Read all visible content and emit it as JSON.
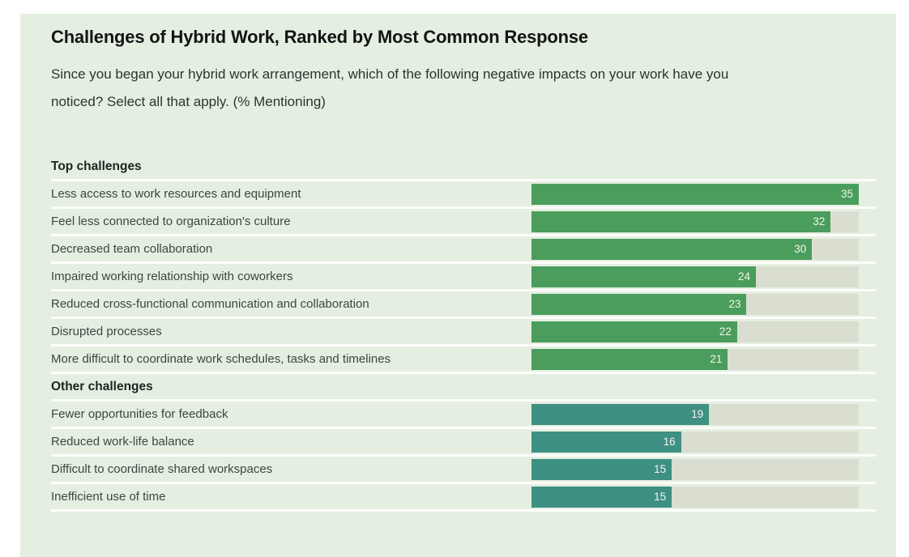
{
  "page": {
    "background": "#ffffff",
    "panel_background": "#e5efe1"
  },
  "header": {
    "title": "Challenges of Hybrid Work, Ranked by Most Common Response",
    "subtitle": "Since you began your hybrid work arrangement, which of the following negative impacts on your work have you noticed? Select all that apply. (% Mentioning)"
  },
  "chart_data": {
    "type": "bar",
    "orientation": "horizontal",
    "title": "Challenges of Hybrid Work, Ranked by Most Common Response",
    "xlabel": "% Mentioning",
    "xlim": [
      0,
      35
    ],
    "grid": false,
    "legend": false,
    "track_color": "#d9ded1",
    "divider_color": "#fcfdfb",
    "sections": [
      {
        "title": "Top challenges",
        "color": "#4a9d5c",
        "rows": [
          {
            "label": "Less access to work resources and equipment",
            "value": 35
          },
          {
            "label": "Feel less connected to organization's culture",
            "value": 32
          },
          {
            "label": "Decreased team collaboration",
            "value": 30
          },
          {
            "label": "Impaired working relationship with coworkers",
            "value": 24
          },
          {
            "label": "Reduced cross-functional communication and collaboration",
            "value": 23
          },
          {
            "label": "Disrupted processes",
            "value": 22
          },
          {
            "label": "More difficult to coordinate work schedules, tasks and timelines",
            "value": 21
          }
        ]
      },
      {
        "title": "Other challenges",
        "color": "#3e9083",
        "rows": [
          {
            "label": "Fewer opportunities for feedback",
            "value": 19
          },
          {
            "label": "Reduced work-life balance",
            "value": 16
          },
          {
            "label": "Difficult to coordinate shared workspaces",
            "value": 15
          },
          {
            "label": "Inefficient use of time",
            "value": 15
          }
        ]
      }
    ]
  }
}
